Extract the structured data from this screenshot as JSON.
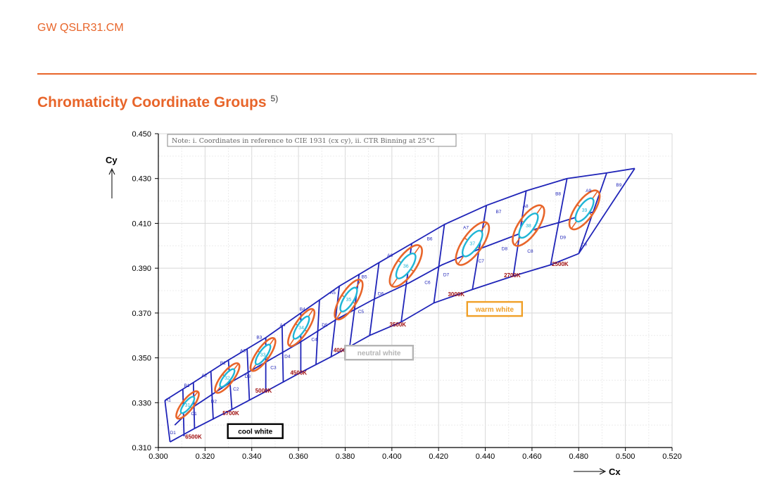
{
  "header": {
    "doc_id": "GW QSLR31.CM"
  },
  "section": {
    "title": "Chromaticity Coordinate Groups",
    "footnote": "5)"
  },
  "chart_data": {
    "type": "scatter",
    "xlabel": "Cx",
    "ylabel": "Cy",
    "xlim": [
      0.3,
      0.52
    ],
    "ylim": [
      0.31,
      0.45
    ],
    "xticks": [
      "0.300",
      "0.320",
      "0.340",
      "0.360",
      "0.380",
      "0.400",
      "0.420",
      "0.440",
      "0.460",
      "0.480",
      "0.500",
      "0.520"
    ],
    "yticks": [
      "0.310",
      "0.330",
      "0.350",
      "0.370",
      "0.390",
      "0.410",
      "0.430",
      "0.450"
    ],
    "grid": true,
    "note": "Note: i. Coordinates in reference to CIE 1931 (cx cy), ii. CTR Binning at 25°C",
    "colors": {
      "bins": "#1f24b8",
      "ellipses_outer": "#e8652a",
      "ellipses_inner": "#1fb6d6",
      "cct": "#a01010"
    },
    "bin_boundary_top": [
      [
        0.3028,
        0.331
      ],
      [
        0.315,
        0.339
      ],
      [
        0.33,
        0.349
      ],
      [
        0.346,
        0.359
      ],
      [
        0.361,
        0.37
      ],
      [
        0.3775,
        0.382
      ],
      [
        0.3945,
        0.3925
      ],
      [
        0.4085,
        0.401
      ],
      [
        0.4225,
        0.4095
      ],
      [
        0.4405,
        0.418
      ],
      [
        0.4575,
        0.4245
      ],
      [
        0.475,
        0.43
      ],
      [
        0.492,
        0.4325
      ],
      [
        0.504,
        0.4345
      ]
    ],
    "bin_boundary_bottom": [
      [
        0.305,
        0.3125
      ],
      [
        0.3155,
        0.3185
      ],
      [
        0.3315,
        0.327
      ],
      [
        0.346,
        0.335
      ],
      [
        0.361,
        0.3435
      ],
      [
        0.374,
        0.3505
      ],
      [
        0.3905,
        0.36
      ],
      [
        0.404,
        0.366
      ],
      [
        0.418,
        0.3745
      ],
      [
        0.4345,
        0.3805
      ],
      [
        0.452,
        0.3865
      ],
      [
        0.468,
        0.3915
      ],
      [
        0.48,
        0.3965
      ]
    ],
    "bin_dividers": [
      [
        [
          0.3028,
          0.331
        ],
        [
          0.305,
          0.3125
        ]
      ],
      [
        [
          0.3105,
          0.336
        ],
        [
          0.311,
          0.315
        ]
      ],
      [
        [
          0.315,
          0.339
        ],
        [
          0.3155,
          0.3185
        ]
      ],
      [
        [
          0.3225,
          0.344
        ],
        [
          0.3235,
          0.3225
        ]
      ],
      [
        [
          0.33,
          0.349
        ],
        [
          0.3315,
          0.327
        ]
      ],
      [
        [
          0.338,
          0.354
        ],
        [
          0.339,
          0.331
        ]
      ],
      [
        [
          0.346,
          0.359
        ],
        [
          0.346,
          0.335
        ]
      ],
      [
        [
          0.353,
          0.364
        ],
        [
          0.3535,
          0.339
        ]
      ],
      [
        [
          0.361,
          0.37
        ],
        [
          0.361,
          0.3435
        ]
      ],
      [
        [
          0.369,
          0.376
        ],
        [
          0.3675,
          0.347
        ]
      ],
      [
        [
          0.3775,
          0.382
        ],
        [
          0.374,
          0.3505
        ]
      ],
      [
        [
          0.386,
          0.3875
        ],
        [
          0.382,
          0.3555
        ]
      ],
      [
        [
          0.3945,
          0.3925
        ],
        [
          0.3905,
          0.36
        ]
      ],
      [
        [
          0.4085,
          0.401
        ],
        [
          0.404,
          0.366
        ]
      ],
      [
        [
          0.4225,
          0.4095
        ],
        [
          0.418,
          0.3745
        ]
      ],
      [
        [
          0.4405,
          0.418
        ],
        [
          0.4345,
          0.3805
        ]
      ],
      [
        [
          0.4575,
          0.4245
        ],
        [
          0.452,
          0.3865
        ]
      ],
      [
        [
          0.475,
          0.43
        ],
        [
          0.468,
          0.3915
        ]
      ],
      [
        [
          0.492,
          0.4325
        ],
        [
          0.48,
          0.3965
        ]
      ]
    ],
    "center_line": [
      [
        0.307,
        0.32
      ],
      [
        0.3155,
        0.3285
      ],
      [
        0.33,
        0.3385
      ],
      [
        0.345,
        0.3475
      ],
      [
        0.36,
        0.3565
      ],
      [
        0.376,
        0.367
      ],
      [
        0.392,
        0.376
      ],
      [
        0.4075,
        0.3835
      ],
      [
        0.4215,
        0.3915
      ],
      [
        0.4385,
        0.399
      ],
      [
        0.455,
        0.4055
      ],
      [
        0.472,
        0.4105
      ],
      [
        0.486,
        0.415
      ]
    ],
    "ellipses": [
      {
        "label": "31",
        "cx": 0.3125,
        "cy": 0.329,
        "a": 0.0072,
        "b": 0.0046,
        "rot": -52
      },
      {
        "label": "32",
        "cx": 0.3295,
        "cy": 0.341,
        "a": 0.0078,
        "b": 0.0049,
        "rot": -52
      },
      {
        "label": "33",
        "cx": 0.3448,
        "cy": 0.3515,
        "a": 0.0084,
        "b": 0.0052,
        "rot": -55
      },
      {
        "label": "34",
        "cx": 0.3612,
        "cy": 0.3635,
        "a": 0.0093,
        "b": 0.0056,
        "rot": -57
      },
      {
        "label": "35",
        "cx": 0.3815,
        "cy": 0.376,
        "a": 0.0098,
        "b": 0.0066,
        "rot": -58
      },
      {
        "label": "36",
        "cx": 0.406,
        "cy": 0.391,
        "a": 0.0105,
        "b": 0.0078,
        "rot": -55
      },
      {
        "label": "37",
        "cx": 0.4345,
        "cy": 0.401,
        "a": 0.0108,
        "b": 0.008,
        "rot": -55
      },
      {
        "label": "38",
        "cx": 0.4585,
        "cy": 0.409,
        "a": 0.0102,
        "b": 0.0078,
        "rot": -55
      },
      {
        "label": "39",
        "cx": 0.4825,
        "cy": 0.416,
        "a": 0.0098,
        "b": 0.0074,
        "rot": -55
      }
    ],
    "cct_labels": [
      {
        "text": "6500K",
        "x": 0.3115,
        "y": 0.314
      },
      {
        "text": "5700K",
        "x": 0.3275,
        "y": 0.3245
      },
      {
        "text": "5000K",
        "x": 0.3415,
        "y": 0.3345
      },
      {
        "text": "4500K",
        "x": 0.3565,
        "y": 0.3425
      },
      {
        "text": "4000K",
        "x": 0.375,
        "y": 0.3525
      },
      {
        "text": "3500K",
        "x": 0.399,
        "y": 0.364
      },
      {
        "text": "3000K",
        "x": 0.424,
        "y": 0.3775
      },
      {
        "text": "2700K",
        "x": 0.448,
        "y": 0.386
      },
      {
        "text": "2500K",
        "x": 0.4685,
        "y": 0.391
      }
    ],
    "bin_labels": [
      {
        "t": "A1",
        "x": 0.303,
        "y": 0.3305
      },
      {
        "t": "B1",
        "x": 0.311,
        "y": 0.337
      },
      {
        "t": "C1",
        "x": 0.314,
        "y": 0.3245
      },
      {
        "t": "D1",
        "x": 0.305,
        "y": 0.316
      },
      {
        "t": "A2",
        "x": 0.3185,
        "y": 0.3415
      },
      {
        "t": "B2",
        "x": 0.3265,
        "y": 0.347
      },
      {
        "t": "C2",
        "x": 0.332,
        "y": 0.3355
      },
      {
        "t": "D2",
        "x": 0.3225,
        "y": 0.33
      },
      {
        "t": "A3",
        "x": 0.335,
        "y": 0.3525
      },
      {
        "t": "B3",
        "x": 0.342,
        "y": 0.3585
      },
      {
        "t": "C3",
        "x": 0.348,
        "y": 0.345
      },
      {
        "t": "D3",
        "x": 0.337,
        "y": 0.341
      },
      {
        "t": "A4",
        "x": 0.352,
        "y": 0.364
      },
      {
        "t": "B4",
        "x": 0.3605,
        "y": 0.371
      },
      {
        "t": "C4",
        "x": 0.3655,
        "y": 0.3575
      },
      {
        "t": "D4",
        "x": 0.354,
        "y": 0.35
      },
      {
        "t": "A5",
        "x": 0.3735,
        "y": 0.3785
      },
      {
        "t": "B5",
        "x": 0.387,
        "y": 0.3855
      },
      {
        "t": "C5",
        "x": 0.3855,
        "y": 0.37
      },
      {
        "t": "D5",
        "x": 0.37,
        "y": 0.364
      },
      {
        "t": "A6",
        "x": 0.398,
        "y": 0.395
      },
      {
        "t": "B6",
        "x": 0.415,
        "y": 0.4025
      },
      {
        "t": "C6",
        "x": 0.414,
        "y": 0.383
      },
      {
        "t": "D6",
        "x": 0.394,
        "y": 0.378
      },
      {
        "t": "A7",
        "x": 0.4305,
        "y": 0.4075
      },
      {
        "t": "B7",
        "x": 0.4445,
        "y": 0.4145
      },
      {
        "t": "C7",
        "x": 0.437,
        "y": 0.3925
      },
      {
        "t": "D7",
        "x": 0.422,
        "y": 0.3865
      },
      {
        "t": "A8",
        "x": 0.456,
        "y": 0.417
      },
      {
        "t": "B8",
        "x": 0.47,
        "y": 0.4225
      },
      {
        "t": "C8",
        "x": 0.458,
        "y": 0.397
      },
      {
        "t": "D8",
        "x": 0.447,
        "y": 0.398
      },
      {
        "t": "A9",
        "x": 0.483,
        "y": 0.424
      },
      {
        "t": "B9",
        "x": 0.496,
        "y": 0.4265
      },
      {
        "t": "C9",
        "x": 0.481,
        "y": 0.4
      },
      {
        "t": "D9",
        "x": 0.472,
        "y": 0.403
      }
    ],
    "region_labels": [
      {
        "text": "cool white",
        "x": 0.3415,
        "y": 0.317,
        "color": "#000000"
      },
      {
        "text": "neutral white",
        "x": 0.3945,
        "y": 0.352,
        "color": "#b5b5b5"
      },
      {
        "text": "warm white",
        "x": 0.444,
        "y": 0.3715,
        "color": "#f0a028"
      }
    ]
  }
}
